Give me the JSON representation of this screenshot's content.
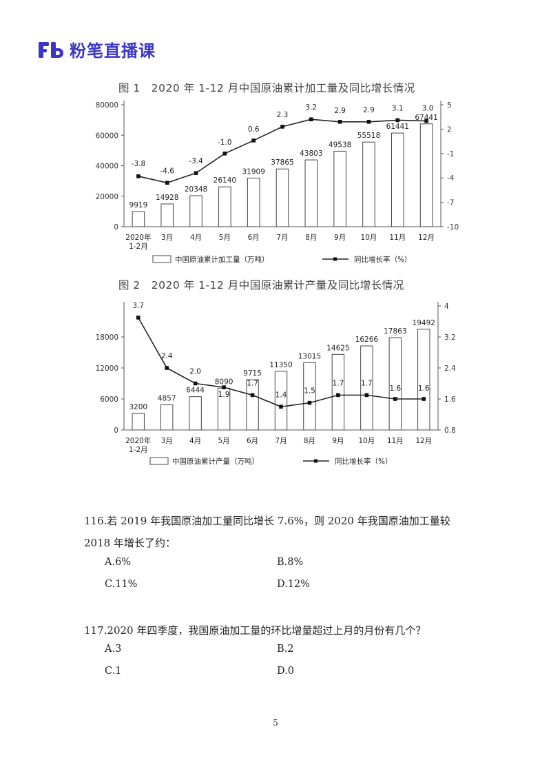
{
  "header": {
    "brand": "粉笔直播课",
    "accent": "#3b35c8"
  },
  "chart_data": [
    {
      "type": "bar+line",
      "title": "图 1　2020 年 1-12 月中国原油累计加工量及同比增长情况",
      "categories": [
        "2020年\n1-2月",
        "3月",
        "4月",
        "5月",
        "6月",
        "7月",
        "8月",
        "9月",
        "10月",
        "11月",
        "12月"
      ],
      "series": [
        {
          "name": "中国原油累计加工量（万吨）",
          "kind": "bar",
          "values": [
            9919,
            14928,
            20348,
            26140,
            31909,
            37865,
            43803,
            49538,
            55518,
            61441,
            67441
          ]
        },
        {
          "name": "同比增长率（%）",
          "kind": "line",
          "values": [
            -3.8,
            -4.6,
            -3.4,
            -1.0,
            0.6,
            2.3,
            3.2,
            2.9,
            2.9,
            3.1,
            3.0
          ],
          "labels": [
            "-3.8",
            "-4.6",
            "-3.4",
            "-1.0",
            "0.6",
            "2.3",
            "3.2",
            "2.9",
            "2.9",
            "3.1",
            "3.0"
          ]
        }
      ],
      "y_left": {
        "range": [
          0,
          80000
        ],
        "ticks": [
          "0",
          "20000",
          "40000",
          "60000",
          "80000"
        ]
      },
      "y_right": {
        "range": [
          -10,
          5
        ],
        "ticks": [
          "-10",
          "-7",
          "-4",
          "-1",
          "2",
          "5"
        ]
      },
      "legend_position": "bottom"
    },
    {
      "type": "bar+line",
      "title": "图 2　2020 年 1-12 月中国原油累计产量及同比增长情况",
      "categories": [
        "2020年\n1-2月",
        "3月",
        "4月",
        "5月",
        "6月",
        "7月",
        "8月",
        "9月",
        "10月",
        "11月",
        "12月"
      ],
      "series": [
        {
          "name": "中国原油累计产量（万吨）",
          "kind": "bar",
          "values": [
            3200,
            4857,
            6444,
            8090,
            9715,
            11350,
            13015,
            14625,
            16266,
            17863,
            19492
          ]
        },
        {
          "name": "同比增长率（%）",
          "kind": "line",
          "values": [
            3.7,
            2.4,
            2.0,
            1.9,
            1.7,
            1.4,
            1.5,
            1.7,
            1.7,
            1.6,
            1.6
          ],
          "labels": [
            "3.7",
            "2.4",
            "2.0",
            "1.9",
            "1.7",
            "1.4",
            "1.5",
            "1.7",
            "1.7",
            "1.6",
            "1.6"
          ]
        }
      ],
      "y_left": {
        "range": [
          0,
          24000
        ],
        "ticks": [
          "0",
          "6000",
          "12000",
          "18000"
        ]
      },
      "y_right": {
        "range": [
          0.8,
          4.0
        ],
        "ticks": [
          "0.8",
          "1.6",
          "2.4",
          "3.2",
          "4"
        ]
      },
      "legend_position": "bottom"
    }
  ],
  "questions": [
    {
      "stem": "116.若 2019 年我国原油加工量同比增长 7.6%，则 2020 年我国原油加工量较 2018 年增长了约：",
      "options": [
        "A.6%",
        "B.8%",
        "C.11%",
        "D.12%"
      ]
    },
    {
      "stem": "117.2020 年四季度，我国原油加工量的环比增量超过上月的月份有几个？",
      "options": [
        "A.3",
        "B.2",
        "C.1",
        "D.0"
      ]
    }
  ],
  "page_number": "5"
}
